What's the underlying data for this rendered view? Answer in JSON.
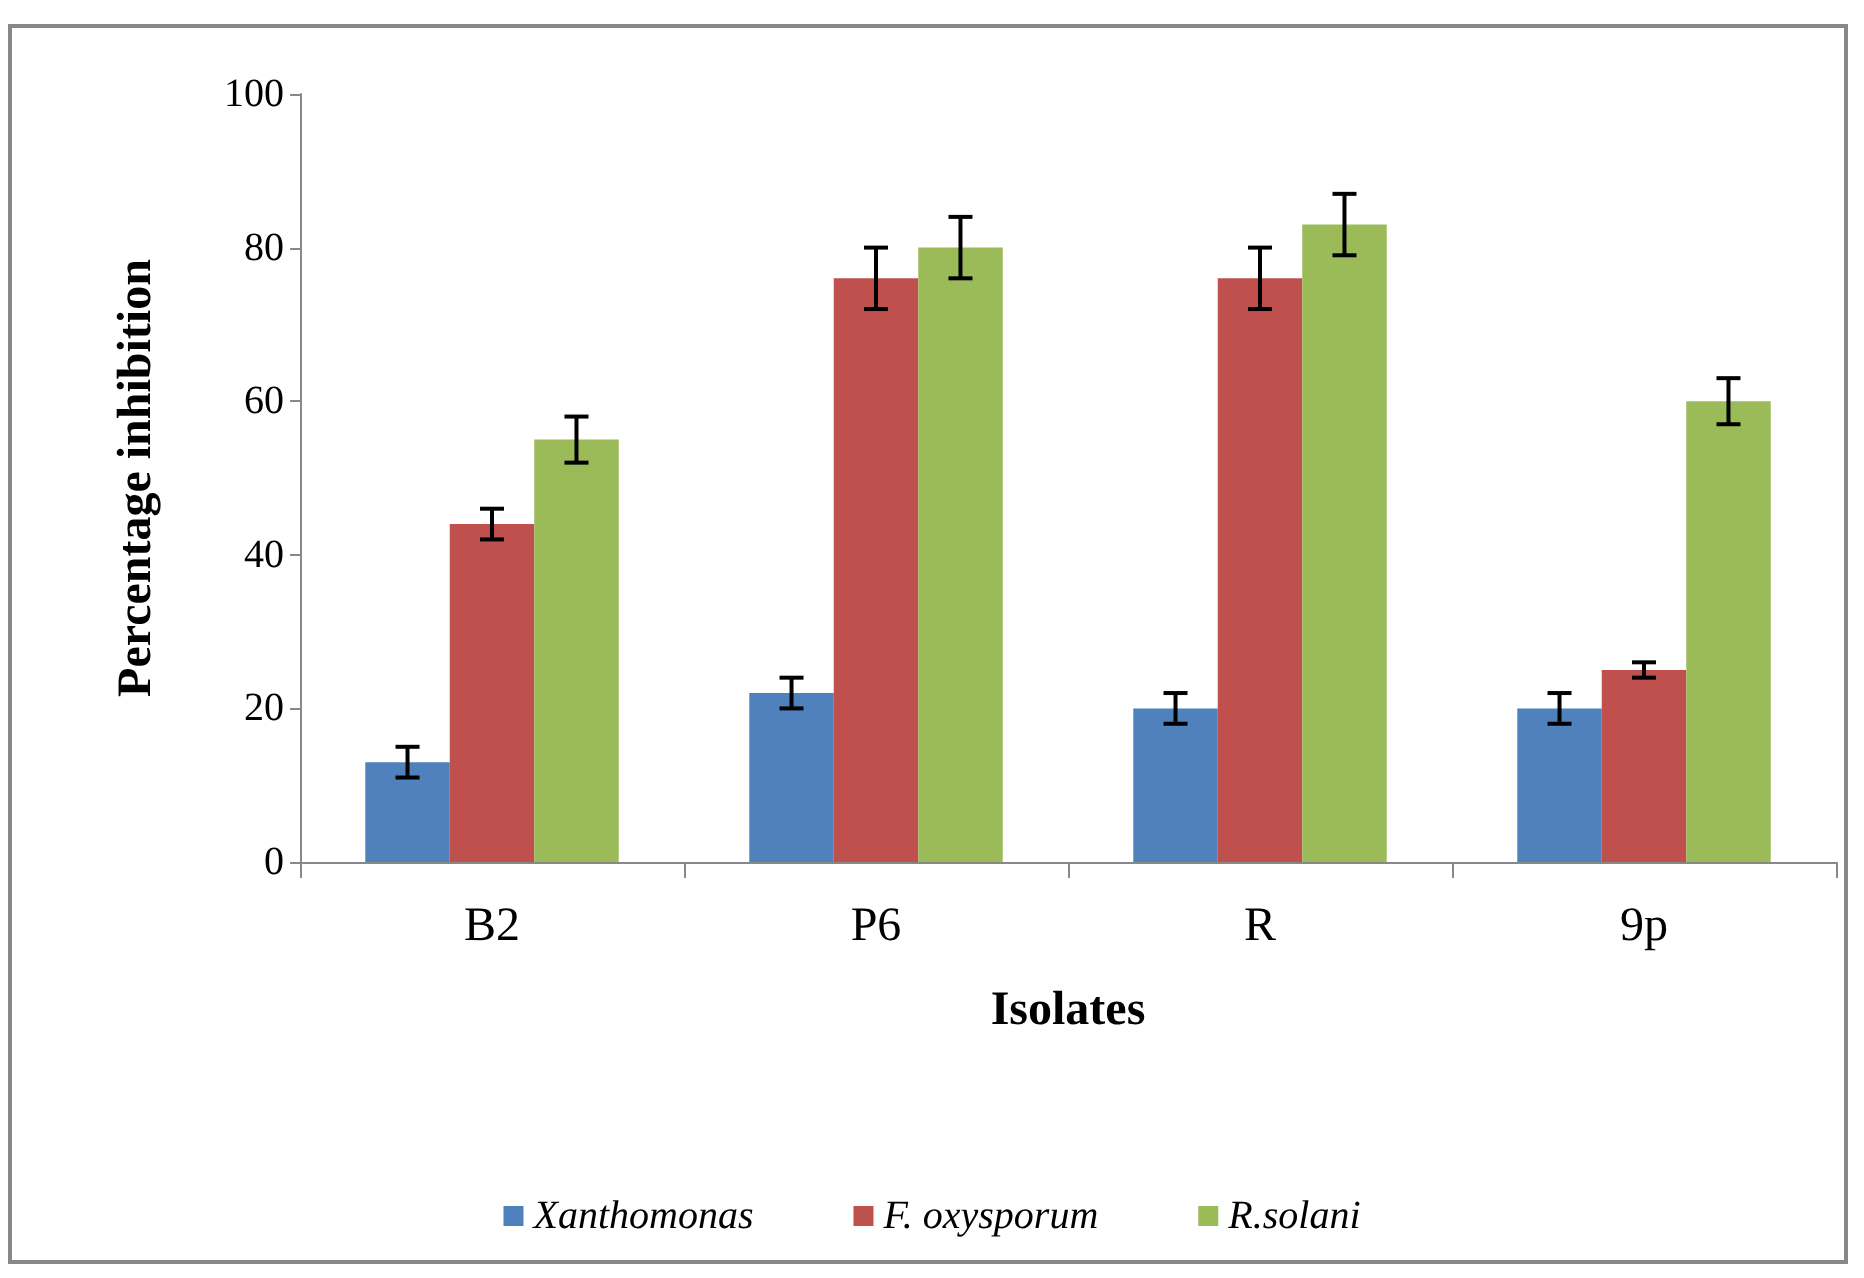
{
  "chart_data": {
    "type": "bar",
    "xlabel": "Isolates",
    "ylabel": "Percentage inhibition",
    "categories": [
      "B2",
      "P6",
      "R",
      "9p"
    ],
    "series": [
      {
        "name": "Xanthomonas",
        "color": "#4f81bd",
        "values": [
          13,
          22,
          20,
          20
        ],
        "errors": [
          2,
          2,
          2,
          2
        ]
      },
      {
        "name": "F. oxysporum",
        "color": "#c0504d",
        "values": [
          44,
          76,
          76,
          25
        ],
        "errors": [
          2,
          4,
          4,
          1
        ]
      },
      {
        "name": "R.solani",
        "color": "#9bbb59",
        "values": [
          55,
          80,
          83,
          60
        ],
        "errors": [
          3,
          4,
          4,
          3
        ]
      }
    ],
    "ylim": [
      0,
      100
    ],
    "yticks": [
      0,
      20,
      40,
      60,
      80,
      100
    ],
    "grid": false,
    "legend": "bottom"
  }
}
